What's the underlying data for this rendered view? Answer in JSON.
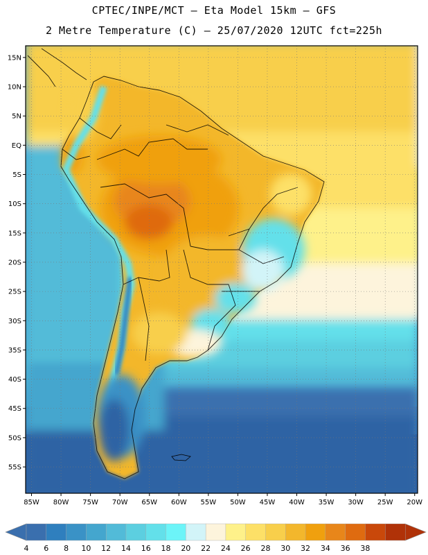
{
  "header": {
    "line1": "CPTEC/INPE/MCT –  Eta Model 15km – GFS",
    "line2": "2 Metre Temperature (C) – 25/07/2020 12UTC fct=225h"
  },
  "map": {
    "lat_labels": [
      "15N",
      "10N",
      "5N",
      "EQ",
      "5S",
      "10S",
      "15S",
      "20S",
      "25S",
      "30S",
      "35S",
      "40S",
      "45S",
      "50S",
      "55S"
    ],
    "lat_values": [
      15,
      10,
      5,
      0,
      -5,
      -10,
      -15,
      -20,
      -25,
      -30,
      -35,
      -40,
      -45,
      -50,
      -55
    ],
    "lon_labels": [
      "85W",
      "80W",
      "75W",
      "70W",
      "65W",
      "60W",
      "55W",
      "50W",
      "45W",
      "40W",
      "35W",
      "30W",
      "25W",
      "20W"
    ],
    "lon_values": [
      -85,
      -80,
      -75,
      -70,
      -65,
      -60,
      -55,
      -50,
      -45,
      -40,
      -35,
      -30,
      -25,
      -20
    ],
    "lon_range": [
      -86,
      -19.5
    ],
    "lat_range": [
      -59.5,
      17
    ]
  },
  "colorbar": {
    "labels": [
      "4",
      "6",
      "8",
      "10",
      "12",
      "14",
      "16",
      "18",
      "20",
      "22",
      "24",
      "26",
      "28",
      "30",
      "32",
      "34",
      "36",
      "38"
    ],
    "colors": [
      "#3a6fae",
      "#2f7fbe",
      "#3a92c6",
      "#44a6ce",
      "#52bbd8",
      "#5ccfe0",
      "#63e0ea",
      "#6cf4f8",
      "#d2f4f8",
      "#fdf4dc",
      "#fef18a",
      "#fde067",
      "#f8cf4b",
      "#f3b72c",
      "#f0a00e",
      "#e8861a",
      "#df6b10",
      "#c9480a",
      "#b03208"
    ],
    "low_end_color": "#3a6fae",
    "high_end_color": "#b03208"
  }
}
